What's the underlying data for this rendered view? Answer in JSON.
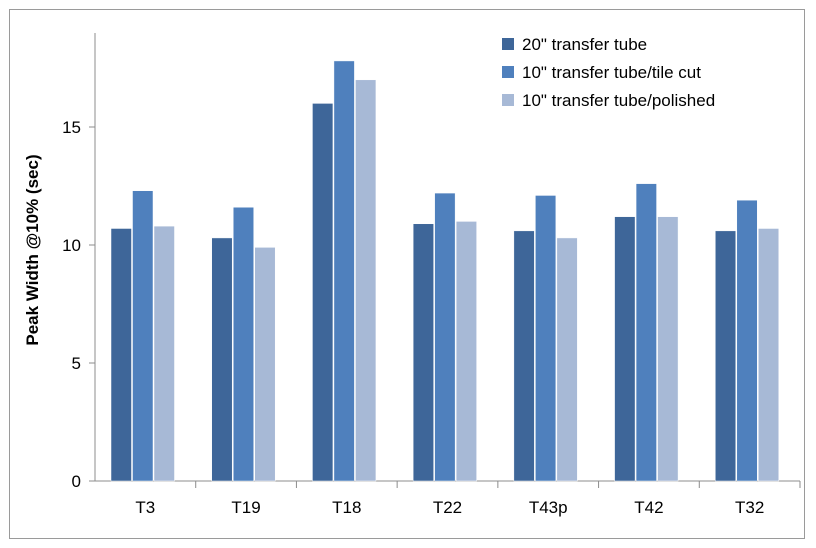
{
  "chart_data": {
    "type": "bar",
    "title": "",
    "xlabel": "",
    "ylabel": "Peak Width @10% (sec)",
    "categories": [
      "T3",
      "T19",
      "T18",
      "T22",
      "T43p",
      "T42",
      "T32"
    ],
    "ylim": [
      0,
      20
    ],
    "yticks": [
      0,
      5,
      10,
      15
    ],
    "grid": false,
    "legend_position": "top-right",
    "series": [
      {
        "name": "20\" transfer tube",
        "color": "#3e6699",
        "values": [
          10.7,
          10.3,
          16.0,
          10.9,
          10.6,
          11.2,
          10.6
        ]
      },
      {
        "name": "10\" transfer tube/tile cut",
        "color": "#4f80bd",
        "values": [
          12.3,
          11.6,
          17.8,
          12.2,
          12.1,
          12.6,
          11.9
        ]
      },
      {
        "name": "10\" transfer tube/polished",
        "color": "#a7b9d6",
        "values": [
          10.8,
          9.9,
          17.0,
          11.0,
          10.3,
          11.2,
          10.7
        ]
      }
    ]
  }
}
